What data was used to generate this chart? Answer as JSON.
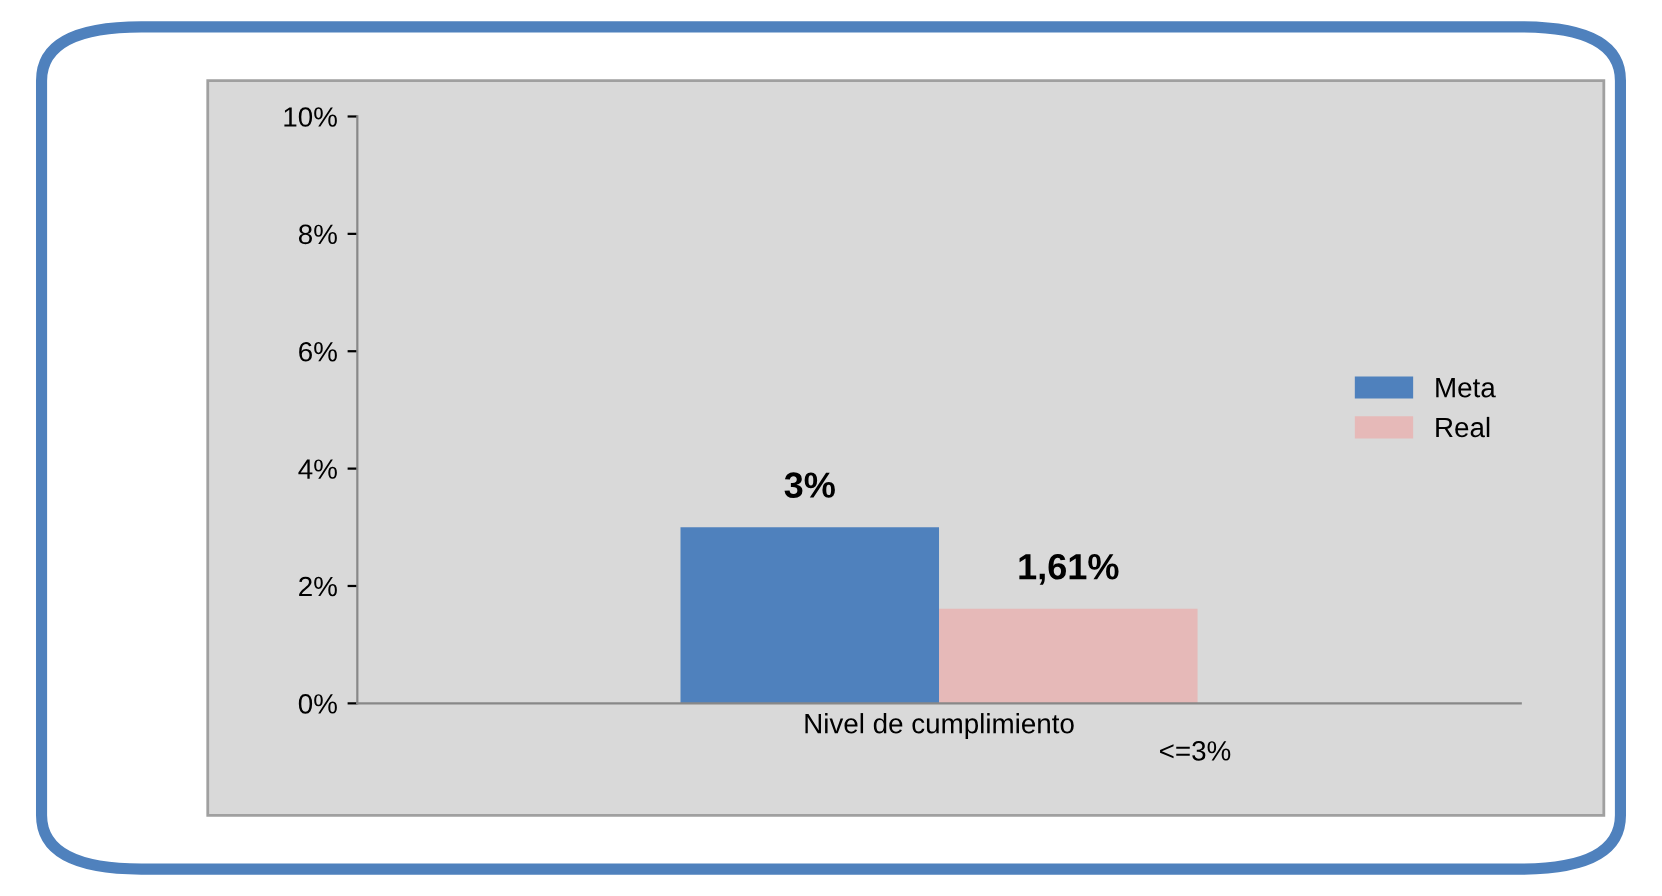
{
  "chart_data": {
    "type": "bar",
    "categories": [
      "Nivel de cumplimiento"
    ],
    "series": [
      {
        "name": "Meta",
        "color": "#4f81bd",
        "values": [
          3
        ],
        "value_labels": [
          "3%"
        ]
      },
      {
        "name": "Real",
        "color": "#e6b9b8",
        "values": [
          1.61
        ],
        "value_labels": [
          "1,61%"
        ]
      }
    ],
    "ylim": [
      0,
      10
    ],
    "yticks": [
      {
        "value": 0,
        "label": "0%"
      },
      {
        "value": 2,
        "label": "2%"
      },
      {
        "value": 4,
        "label": "4%"
      },
      {
        "value": 6,
        "label": "6%"
      },
      {
        "value": 8,
        "label": "8%"
      },
      {
        "value": 10,
        "label": "10%"
      }
    ],
    "annotations": [
      "<=3%"
    ],
    "grid": false,
    "legend": "right"
  }
}
